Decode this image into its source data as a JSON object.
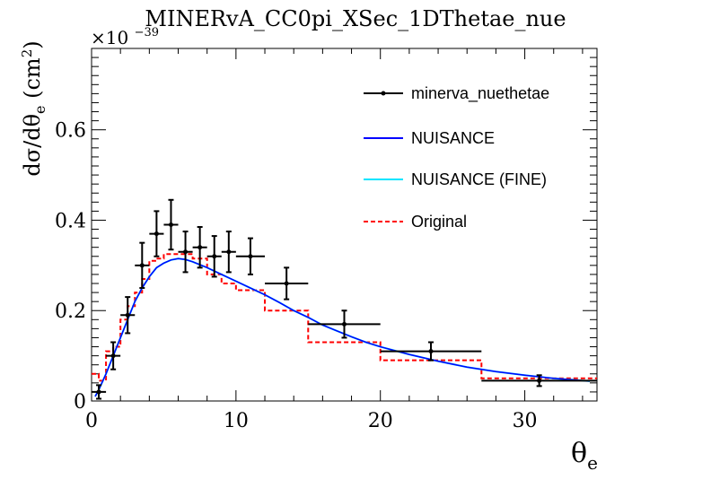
{
  "chart_data": {
    "type": "line",
    "title": "MINERvA_CC0pi_XSec_1DThetae_nue",
    "xlabel": "θ",
    "xlabel_sub": "e",
    "ylabel_main": "dσ/dθ",
    "ylabel_sub": "e",
    "ylabel_unit": " (cm",
    "ylabel_unit_sup": "2",
    "ylabel_close": ")",
    "y_multiplier": "×10",
    "y_multiplier_exp": "−39",
    "xlim": [
      0,
      35
    ],
    "ylim": [
      0,
      0.78
    ],
    "x_ticks": [
      "0",
      "10",
      "20",
      "30"
    ],
    "y_ticks": [
      "0",
      "0.2",
      "0.4",
      "0.6"
    ],
    "legend_position": "top-right",
    "legend": [
      {
        "label": "minerva_nuethetae",
        "color": "#000000",
        "style": "marker-line"
      },
      {
        "label": "NUISANCE",
        "color": "#0000ff",
        "style": "line"
      },
      {
        "label": "NUISANCE (FINE)",
        "color": "#00e5ff",
        "style": "line"
      },
      {
        "label": "Original",
        "color": "#ff0000",
        "style": "dashed"
      }
    ],
    "data_points": [
      {
        "x": 0.5,
        "xlo": 0,
        "xhi": 1,
        "y": 0.02,
        "yerr": 0.015
      },
      {
        "x": 1.5,
        "xlo": 1,
        "xhi": 2,
        "y": 0.1,
        "yerr": 0.03
      },
      {
        "x": 2.5,
        "xlo": 2,
        "xhi": 3,
        "y": 0.19,
        "yerr": 0.04
      },
      {
        "x": 3.5,
        "xlo": 3,
        "xhi": 4,
        "y": 0.3,
        "yerr": 0.05
      },
      {
        "x": 4.5,
        "xlo": 4,
        "xhi": 5,
        "y": 0.37,
        "yerr": 0.05
      },
      {
        "x": 5.5,
        "xlo": 5,
        "xhi": 6,
        "y": 0.39,
        "yerr": 0.055
      },
      {
        "x": 6.5,
        "xlo": 6,
        "xhi": 7,
        "y": 0.33,
        "yerr": 0.045
      },
      {
        "x": 7.5,
        "xlo": 7,
        "xhi": 8,
        "y": 0.34,
        "yerr": 0.045
      },
      {
        "x": 8.5,
        "xlo": 8,
        "xhi": 9,
        "y": 0.32,
        "yerr": 0.045
      },
      {
        "x": 9.5,
        "xlo": 9,
        "xhi": 10,
        "y": 0.33,
        "yerr": 0.045
      },
      {
        "x": 11,
        "xlo": 10,
        "xhi": 12,
        "y": 0.32,
        "yerr": 0.04
      },
      {
        "x": 13.5,
        "xlo": 12,
        "xhi": 15,
        "y": 0.26,
        "yerr": 0.035
      },
      {
        "x": 17.5,
        "xlo": 15,
        "xhi": 20,
        "y": 0.17,
        "yerr": 0.03
      },
      {
        "x": 23.5,
        "xlo": 20,
        "xhi": 27,
        "y": 0.11,
        "yerr": 0.02
      },
      {
        "x": 31,
        "xlo": 27,
        "xhi": 35,
        "y": 0.045,
        "yerr": 0.012
      }
    ],
    "original_bins": [
      {
        "xlo": 0,
        "xhi": 0.5,
        "y": 0.06
      },
      {
        "xlo": 0.5,
        "xhi": 1,
        "y": 0.045
      },
      {
        "xlo": 1,
        "xhi": 1.5,
        "y": 0.11
      },
      {
        "xlo": 1.5,
        "xhi": 2,
        "y": 0.12
      },
      {
        "xlo": 2,
        "xhi": 2.5,
        "y": 0.18
      },
      {
        "xlo": 2.5,
        "xhi": 3,
        "y": 0.21
      },
      {
        "xlo": 3,
        "xhi": 3.5,
        "y": 0.24
      },
      {
        "xlo": 3.5,
        "xhi": 4,
        "y": 0.27
      },
      {
        "xlo": 4,
        "xhi": 4.5,
        "y": 0.31
      },
      {
        "xlo": 4.5,
        "xhi": 5,
        "y": 0.315
      },
      {
        "xlo": 5,
        "xhi": 6,
        "y": 0.325
      },
      {
        "xlo": 6,
        "xhi": 7,
        "y": 0.325
      },
      {
        "xlo": 7,
        "xhi": 8,
        "y": 0.315
      },
      {
        "xlo": 8,
        "xhi": 9,
        "y": 0.28
      },
      {
        "xlo": 9,
        "xhi": 10,
        "y": 0.26
      },
      {
        "xlo": 10,
        "xhi": 12,
        "y": 0.245
      },
      {
        "xlo": 12,
        "xhi": 15,
        "y": 0.2
      },
      {
        "xlo": 15,
        "xhi": 20,
        "y": 0.13
      },
      {
        "xlo": 20,
        "xhi": 27,
        "y": 0.09
      },
      {
        "xlo": 27,
        "xhi": 35,
        "y": 0.05
      }
    ],
    "nuisance_curve": {
      "x": [
        0.25,
        0.5,
        1,
        1.5,
        2,
        2.5,
        3,
        3.5,
        4,
        4.5,
        5,
        5.5,
        6,
        6.5,
        7,
        8,
        9,
        10,
        11,
        12,
        13,
        14,
        15,
        16,
        17,
        18,
        19,
        20,
        22,
        24,
        26,
        28,
        30,
        32,
        34.5
      ],
      "y": [
        0.01,
        0.025,
        0.06,
        0.1,
        0.14,
        0.18,
        0.22,
        0.25,
        0.275,
        0.295,
        0.305,
        0.312,
        0.315,
        0.313,
        0.308,
        0.295,
        0.28,
        0.265,
        0.25,
        0.235,
        0.218,
        0.2,
        0.185,
        0.168,
        0.155,
        0.142,
        0.13,
        0.12,
        0.103,
        0.088,
        0.075,
        0.065,
        0.057,
        0.05,
        0.044
      ]
    }
  }
}
